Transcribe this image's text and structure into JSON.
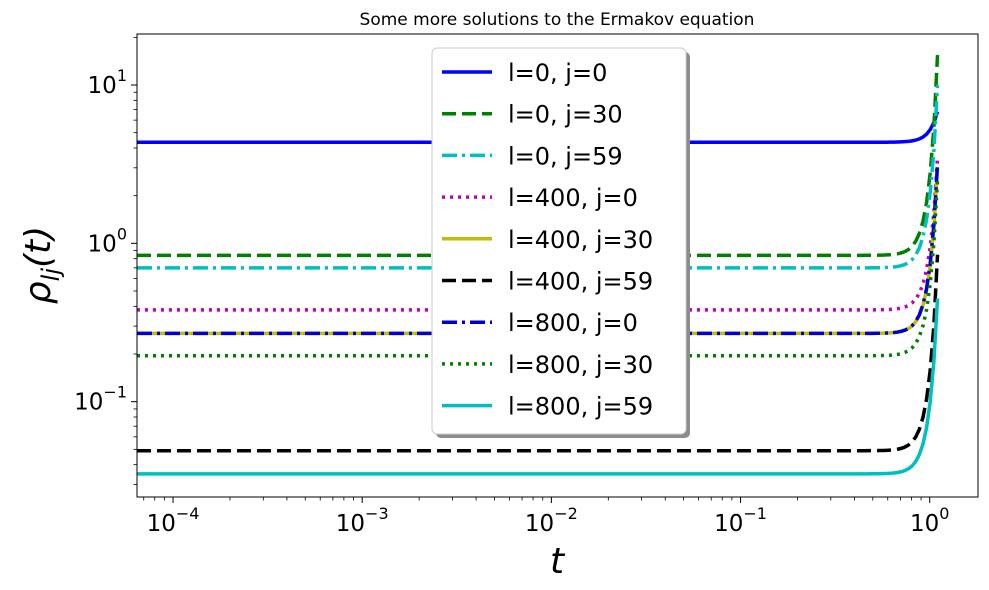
{
  "chart_data": {
    "type": "line",
    "title": "Some more solutions to the Ermakov equation",
    "xlabel": "t",
    "ylabel": "ρ_lj(t)",
    "xscale": "log",
    "yscale": "log",
    "xlim": [
      6.45e-05,
      1.8
    ],
    "ylim": [
      0.025,
      21
    ],
    "grid": false,
    "legend": {
      "placement": "upper center",
      "shadow": true
    },
    "x_ticks": [
      {
        "base": "10",
        "exp": "−4",
        "value": 0.0001
      },
      {
        "base": "10",
        "exp": "−3",
        "value": 0.001
      },
      {
        "base": "10",
        "exp": "−2",
        "value": 0.01
      },
      {
        "base": "10",
        "exp": "−1",
        "value": 0.1
      },
      {
        "base": "10",
        "exp": "0",
        "value": 1
      }
    ],
    "y_ticks": [
      {
        "base": "10",
        "exp": "−1",
        "value": 0.1
      },
      {
        "base": "10",
        "exp": "0",
        "value": 1
      },
      {
        "base": "10",
        "exp": "1",
        "value": 10
      }
    ],
    "series": [
      {
        "name": "l=0, j=0",
        "color": "#0000ff",
        "style": "solid",
        "plateau": 4.35,
        "end_value": 6.8
      },
      {
        "name": "l=0, j=30",
        "color": "#008000",
        "style": "dashed",
        "plateau": 0.84,
        "end_value": 15.5
      },
      {
        "name": "l=0, j=59",
        "color": "#00bfbf",
        "style": "dashdot",
        "plateau": 0.7,
        "end_value": 10.0
      },
      {
        "name": "l=400, j=0",
        "color": "#bf00bf",
        "style": "dotted",
        "plateau": 0.38,
        "end_value": 3.5
      },
      {
        "name": "l=400, j=30",
        "color": "#bfbf00",
        "style": "solid",
        "plateau": 0.27,
        "end_value": 3.0
      },
      {
        "name": "l=400, j=59",
        "color": "#000000",
        "style": "dashed",
        "plateau": 0.049,
        "end_value": 0.85
      },
      {
        "name": "l=800, j=0",
        "color": "#0000cc",
        "style": "dashdot",
        "plateau": 0.27,
        "end_value": 3.2
      },
      {
        "name": "l=800, j=30",
        "color": "#008000",
        "style": "dotted",
        "plateau": 0.195,
        "end_value": 2.5
      },
      {
        "name": "l=800, j=59",
        "color": "#00bfbf",
        "style": "solid",
        "plateau": 0.035,
        "end_value": 0.45
      }
    ],
    "t_end": 1.1
  }
}
